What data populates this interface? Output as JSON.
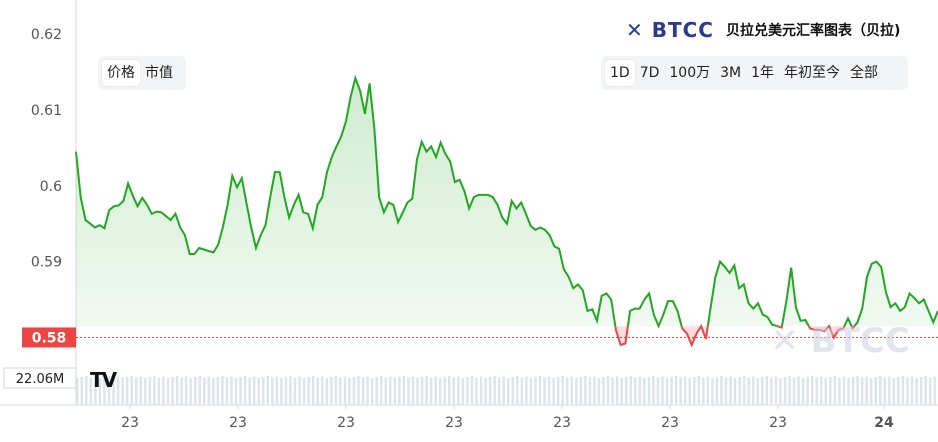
{
  "header": {
    "brand": "✕ BTCC",
    "title": "贝拉兑美元汇率图表（贝拉)"
  },
  "type_tabs": [
    {
      "label": "价格",
      "active": true
    },
    {
      "label": "市值",
      "active": false
    }
  ],
  "range_tabs": [
    {
      "label": "1D",
      "active": true
    },
    {
      "label": "7D",
      "active": false
    },
    {
      "label": "100万",
      "active": false
    },
    {
      "label": "3M",
      "active": false
    },
    {
      "label": "1年",
      "active": false
    },
    {
      "label": "年初至今",
      "active": false
    },
    {
      "label": "全部",
      "active": false
    }
  ],
  "watermark": "BTCC",
  "tv_logo": "TV",
  "colors": {
    "up": "#22a722",
    "down": "#ef4444",
    "up_fill": "#e5f5e3",
    "down_fill": "#fde8e8",
    "axis_text": "#555555"
  },
  "chart_data": {
    "type": "line",
    "title": "贝拉兑美元汇率图表（贝拉)",
    "xlabel": "",
    "ylabel": "",
    "ylim": [
      0.5765,
      0.6245
    ],
    "yticks": [
      0.62,
      0.61,
      0.6,
      0.59,
      0.58
    ],
    "ytick_labels": [
      "0.62",
      "0.61",
      "0.6",
      "0.59",
      "0.58"
    ],
    "x_tick_labels": [
      "23",
      "23",
      "23",
      "23",
      "23",
      "23",
      "23",
      "24"
    ],
    "baseline_price": 0.5815,
    "current_price_label": "0.58",
    "current_price": 0.58,
    "volume_label": "22.06M",
    "grid": false,
    "series": [
      {
        "values": [
          0.6045,
          0.5985,
          0.5955,
          0.595,
          0.5945,
          0.5948,
          0.5944,
          0.5968,
          0.5973,
          0.5974,
          0.598,
          0.6003,
          0.5987,
          0.5973,
          0.5984,
          0.5975,
          0.5963,
          0.5966,
          0.5965,
          0.596,
          0.5955,
          0.5963,
          0.5945,
          0.5935,
          0.591,
          0.591,
          0.5918,
          0.5916,
          0.5914,
          0.5912,
          0.5922,
          0.5945,
          0.5975,
          0.6013,
          0.5998,
          0.601,
          0.5977,
          0.5945,
          0.5918,
          0.5935,
          0.5948,
          0.5985,
          0.6018,
          0.6018,
          0.5985,
          0.5958,
          0.5975,
          0.5988,
          0.5965,
          0.5963,
          0.5944,
          0.5975,
          0.5985,
          0.6018,
          0.6038,
          0.6052,
          0.6065,
          0.6085,
          0.6118,
          0.6142,
          0.6125,
          0.6095,
          0.6135,
          0.6075,
          0.5985,
          0.5965,
          0.5978,
          0.5975,
          0.5952,
          0.5965,
          0.5978,
          0.5983,
          0.6035,
          0.6058,
          0.6045,
          0.6052,
          0.6038,
          0.6057,
          0.6042,
          0.6032,
          0.6005,
          0.6008,
          0.5993,
          0.597,
          0.5985,
          0.5988,
          0.5988,
          0.5988,
          0.5985,
          0.5975,
          0.5958,
          0.595,
          0.598,
          0.597,
          0.5978,
          0.5963,
          0.5947,
          0.5942,
          0.5945,
          0.5942,
          0.5935,
          0.592,
          0.5917,
          0.589,
          0.588,
          0.5865,
          0.587,
          0.5862,
          0.5835,
          0.5837,
          0.5822,
          0.5855,
          0.5858,
          0.585,
          0.581,
          0.579,
          0.5792,
          0.5835,
          0.5838,
          0.5838,
          0.585,
          0.5858,
          0.583,
          0.5815,
          0.583,
          0.5848,
          0.5848,
          0.5835,
          0.5812,
          0.5805,
          0.579,
          0.5805,
          0.5815,
          0.5798,
          0.584,
          0.588,
          0.59,
          0.5893,
          0.5885,
          0.5895,
          0.5865,
          0.587,
          0.5845,
          0.5838,
          0.5845,
          0.583,
          0.5827,
          0.5817,
          0.5815,
          0.5813,
          0.5848,
          0.5892,
          0.584,
          0.5822,
          0.5823,
          0.5812,
          0.581,
          0.581,
          0.5808,
          0.5815,
          0.58,
          0.581,
          0.5812,
          0.5825,
          0.5812,
          0.582,
          0.5838,
          0.588,
          0.5897,
          0.59,
          0.5893,
          0.586,
          0.584,
          0.5845,
          0.5835,
          0.584,
          0.5858,
          0.5852,
          0.5845,
          0.585,
          0.5835,
          0.582,
          0.5835
        ]
      }
    ]
  }
}
